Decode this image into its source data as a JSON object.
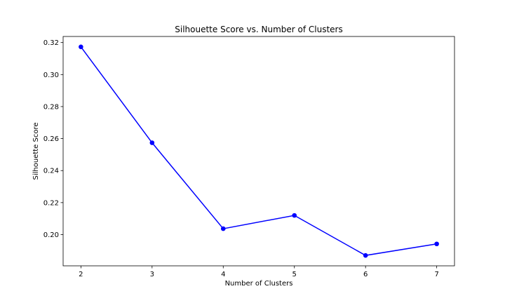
{
  "chart_data": {
    "type": "line",
    "title": "Silhouette Score vs. Number of Clusters",
    "xlabel": "Number of Clusters",
    "ylabel": "Silhouette Score",
    "x": [
      2,
      3,
      4,
      5,
      6,
      7
    ],
    "series": [
      {
        "values": [
          0.3173,
          0.2574,
          0.2037,
          0.212,
          0.187,
          0.1942
        ]
      }
    ],
    "xticks": [
      "2",
      "3",
      "4",
      "5",
      "6",
      "7"
    ],
    "yticks": [
      "0.20",
      "0.22",
      "0.24",
      "0.26",
      "0.28",
      "0.30",
      "0.32"
    ],
    "xlim": [
      1.75,
      7.25
    ],
    "ylim": [
      0.1805,
      0.3238
    ],
    "grid": false,
    "line_color": "#0000ff",
    "marker": "circle"
  }
}
